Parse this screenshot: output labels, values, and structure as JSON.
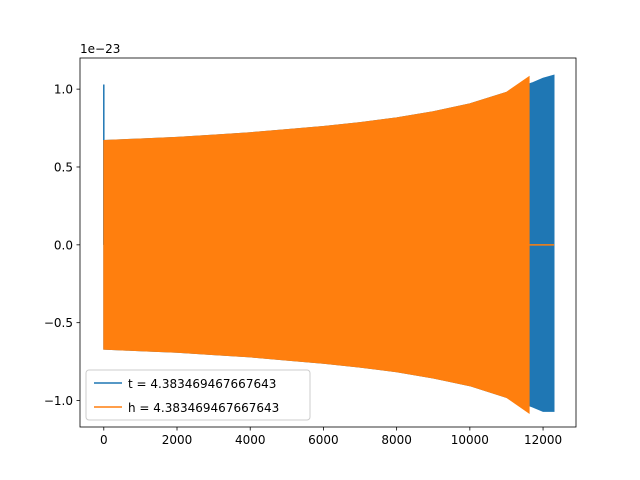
{
  "chart_data": {
    "type": "line",
    "title": "",
    "xlabel": "",
    "ylabel": "",
    "y_offset_label": "1e−23",
    "xlim": [
      -650,
      12900
    ],
    "ylim": [
      -1.17,
      1.2
    ],
    "x_ticks": [
      0,
      2000,
      4000,
      6000,
      8000,
      10000,
      12000
    ],
    "x_tick_labels": [
      "0",
      "2000",
      "4000",
      "6000",
      "8000",
      "10000",
      "12000"
    ],
    "y_ticks": [
      -1.0,
      -0.5,
      0.0,
      0.5,
      1.0
    ],
    "y_tick_labels": [
      "−1.0",
      "−0.5",
      "0.0",
      "0.5",
      "1.0"
    ],
    "grid": false,
    "legend_position": "lower-left",
    "series": [
      {
        "name": "t = 4.383469467667643",
        "color": "#1f77b4",
        "envelope": {
          "x": [
            0,
            1000,
            2000,
            3000,
            4000,
            5000,
            6000,
            7000,
            8000,
            9000,
            10000,
            11000,
            11700,
            12000,
            12300
          ],
          "upper": [
            0.67,
            0.68,
            0.69,
            0.705,
            0.72,
            0.74,
            0.76,
            0.785,
            0.815,
            0.855,
            0.905,
            0.98,
            1.04,
            1.07,
            1.09
          ],
          "lower": [
            -0.67,
            -0.68,
            -0.69,
            -0.705,
            -0.72,
            -0.74,
            -0.76,
            -0.785,
            -0.815,
            -0.855,
            -0.905,
            -0.98,
            -1.04,
            -1.07,
            -1.07
          ]
        },
        "spike": {
          "x": 0,
          "ymax": 1.03
        }
      },
      {
        "name": "h = 4.383469467667643",
        "color": "#ff7f0e",
        "envelope": {
          "x": [
            0,
            1000,
            2000,
            3000,
            4000,
            5000,
            6000,
            7000,
            8000,
            9000,
            10000,
            11000,
            11620
          ],
          "upper": [
            0.67,
            0.68,
            0.69,
            0.705,
            0.72,
            0.74,
            0.76,
            0.785,
            0.815,
            0.855,
            0.905,
            0.98,
            1.08
          ],
          "lower": [
            -0.67,
            -0.68,
            -0.69,
            -0.705,
            -0.72,
            -0.74,
            -0.76,
            -0.785,
            -0.815,
            -0.855,
            -0.905,
            -0.98,
            -1.08
          ]
        },
        "flat_segment": {
          "x": [
            11620,
            12300
          ],
          "y": 0.0
        }
      }
    ]
  }
}
